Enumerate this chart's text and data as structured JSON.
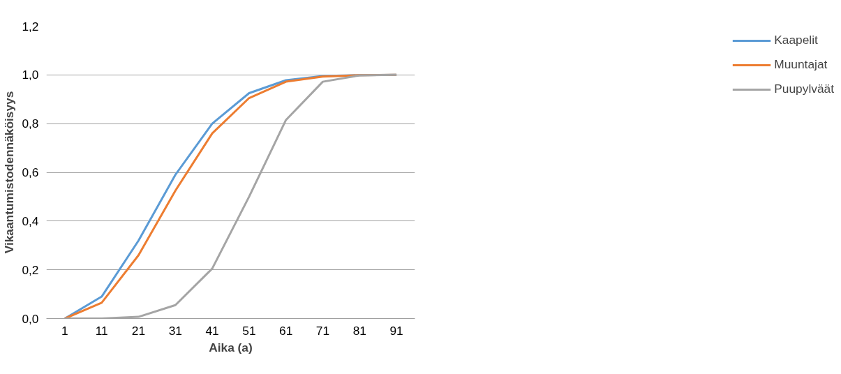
{
  "chart_data": {
    "type": "line",
    "xlabel": "Aika (a)",
    "ylabel": "Vikaantumistodennäköisyys",
    "categories": [
      "1",
      "11",
      "21",
      "31",
      "41",
      "51",
      "61",
      "71",
      "81",
      "91"
    ],
    "series": [
      {
        "name": "Kaapelit",
        "color": "#5b9bd5",
        "values": [
          0,
          0.09,
          0.32,
          0.59,
          0.8,
          0.925,
          0.978,
          0.995,
          0.999,
          1.0
        ]
      },
      {
        "name": "Muuntajat",
        "color": "#ed7d31",
        "values": [
          0,
          0.065,
          0.26,
          0.525,
          0.76,
          0.905,
          0.972,
          0.993,
          0.999,
          1.0
        ]
      },
      {
        "name": "Puupylväät",
        "color": "#a5a5a5",
        "values": [
          0,
          0.0,
          0.007,
          0.055,
          0.205,
          0.5,
          0.815,
          0.972,
          0.998,
          1.0
        ]
      }
    ],
    "ylim": [
      0,
      1.2
    ],
    "yticks": [
      {
        "value": 0,
        "label": "0,0"
      },
      {
        "value": 0.2,
        "label": "0,2"
      },
      {
        "value": 0.4,
        "label": "0,4"
      },
      {
        "value": 0.6,
        "label": "0,6"
      },
      {
        "value": 0.8,
        "label": "0,8"
      },
      {
        "value": 1.0,
        "label": "1,0"
      },
      {
        "value": 1.2,
        "label": "1,2"
      }
    ],
    "grid": "y",
    "legend": "right",
    "marker": "none",
    "line_style": "solid"
  }
}
